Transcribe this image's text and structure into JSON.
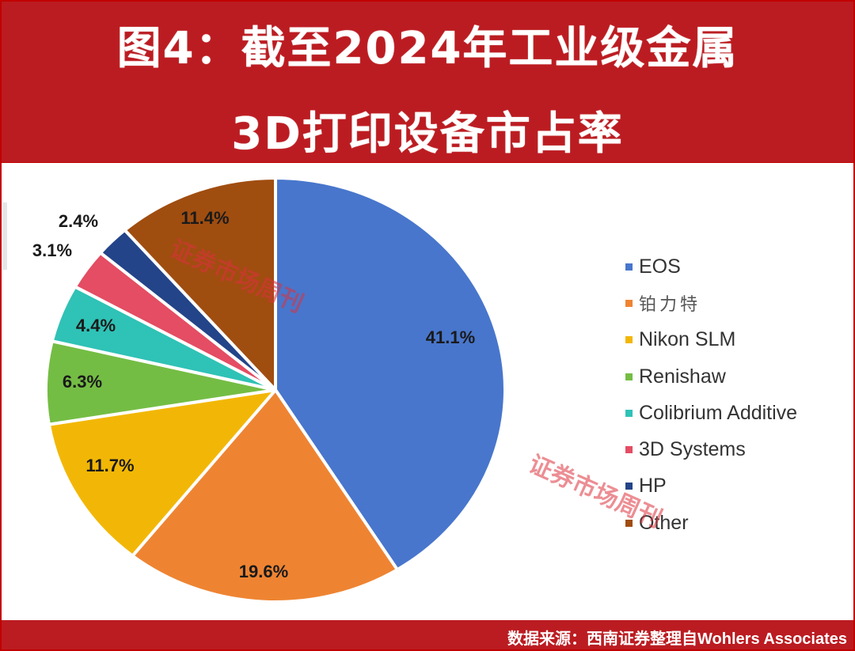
{
  "title": {
    "line1": "图4：截至2024年工业级金属",
    "line2": "3D打印设备市占率"
  },
  "footer": {
    "source": "数据来源：西南证券整理自Wohlers Associates"
  },
  "watermarks": [
    "证券市场周刊",
    "证券市场周刊"
  ],
  "chart_data": {
    "type": "pie",
    "title": "截至2024年工业级金属3D打印设备市占率",
    "start_angle_deg": 0,
    "direction": "clockwise",
    "legend_position": "right",
    "slices": [
      {
        "name": "EOS",
        "value": 41.1,
        "label": "41.1%",
        "color": "#4876cc"
      },
      {
        "name": "铂力特",
        "value": 19.6,
        "label": "19.6%",
        "color": "#ee8432"
      },
      {
        "name": "Nikon SLM",
        "value": 11.7,
        "label": "11.7%",
        "color": "#f2b706"
      },
      {
        "name": "Renishaw",
        "value": 6.3,
        "label": "6.3%",
        "color": "#74bd44"
      },
      {
        "name": "Colibrium Additive",
        "value": 4.4,
        "label": "4.4%",
        "color": "#2fc2b6"
      },
      {
        "name": "3D Systems",
        "value": 3.1,
        "label": "3.1%",
        "color": "#e44d63"
      },
      {
        "name": "HP",
        "value": 2.4,
        "label": "2.4%",
        "color": "#234488"
      },
      {
        "name": "Other",
        "value": 11.4,
        "label": "11.4%",
        "color": "#a04d10"
      }
    ],
    "categories": [
      "EOS",
      "铂力特",
      "Nikon SLM",
      "Renishaw",
      "Colibrium Additive",
      "3D Systems",
      "HP",
      "Other"
    ],
    "values": [
      41.1,
      19.6,
      11.7,
      6.3,
      4.4,
      3.1,
      2.4,
      11.4
    ],
    "unit": "%"
  }
}
